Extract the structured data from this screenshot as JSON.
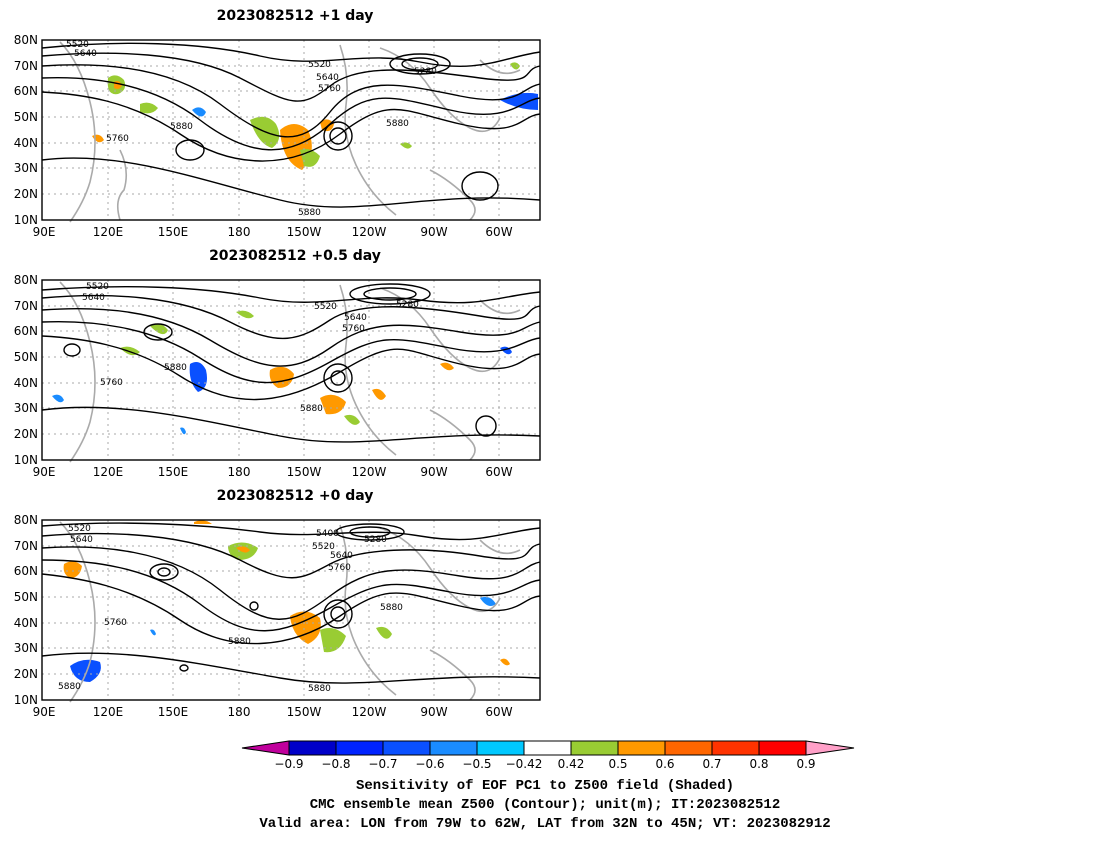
{
  "panels": [
    {
      "title": "2023082512 +1 day",
      "contour_labels": [
        "5520",
        "5640",
        "5520",
        "5640",
        "5760",
        "5280",
        "5880",
        "5880",
        "5760",
        "5880"
      ]
    },
    {
      "title": "2023082512 +0.5 day",
      "contour_labels": [
        "5520",
        "5640",
        "5520",
        "5640",
        "5760",
        "5280",
        "5880",
        "5760",
        "5880"
      ]
    },
    {
      "title": "2023082512 +0 day",
      "contour_labels": [
        "5520",
        "5640",
        "5400",
        "5520",
        "5640",
        "5760",
        "5280",
        "5880",
        "5760",
        "5880",
        "5880",
        "5880"
      ]
    }
  ],
  "axes": {
    "lat_labels": [
      "80N",
      "70N",
      "60N",
      "50N",
      "40N",
      "30N",
      "20N",
      "10N"
    ],
    "lon_labels": [
      "90E",
      "120E",
      "150E",
      "180",
      "150W",
      "120W",
      "90W",
      "60W"
    ]
  },
  "colorbar": {
    "tick_labels": [
      "−0.9",
      "−0.8",
      "−0.7",
      "−0.6",
      "−0.5",
      "−0.42",
      "0.42",
      "0.5",
      "0.6",
      "0.7",
      "0.8",
      "0.9"
    ],
    "colors": [
      "#c0009c",
      "#0000c8",
      "#0023ff",
      "#0a50ff",
      "#1a8cff",
      "#00c8ff",
      "#ffffff",
      "#99cc33",
      "#ff9900",
      "#ff6600",
      "#ff3300",
      "#ff0000",
      "#ffa0c8"
    ]
  },
  "captions": {
    "line1": "Sensitivity of EOF PC1 to Z500 field (Shaded)",
    "line2": "CMC ensemble mean Z500 (Contour); unit(m); IT:2023082512",
    "line3": "Valid area: LON from 79W to 62W, LAT from 32N to 45N; VT: 2023082912"
  }
}
